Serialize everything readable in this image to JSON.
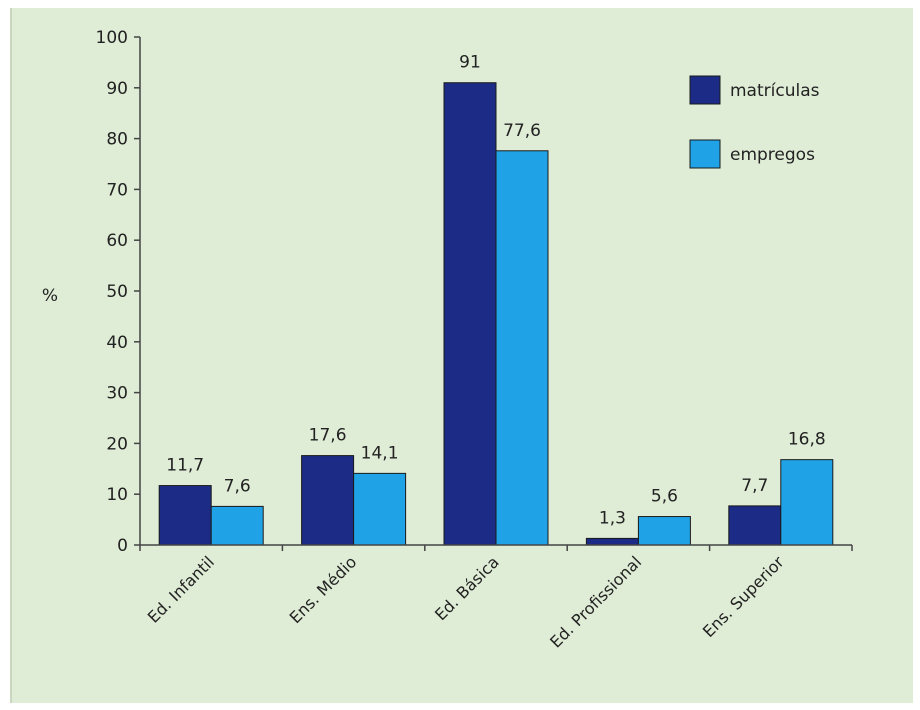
{
  "chart_data": {
    "type": "bar",
    "title": "",
    "xlabel": "",
    "ylabel": "%",
    "ylim": [
      0,
      100
    ],
    "yticks": [
      0,
      10,
      20,
      30,
      40,
      50,
      60,
      70,
      80,
      90,
      100
    ],
    "grid": false,
    "legend_position": "top-right",
    "categories": [
      "Ed. Infantil",
      "Ens. Médio",
      "Ed. Básica",
      "Ed. Profissional",
      "Ens. Superior"
    ],
    "series": [
      {
        "name": "matrículas",
        "color": "#1c2c86",
        "values": [
          11.7,
          17.6,
          91,
          1.3,
          7.7
        ],
        "labels": [
          "11,7",
          "17,6",
          "91",
          "1,3",
          "7,7"
        ]
      },
      {
        "name": "empregos",
        "color": "#20a3e6",
        "values": [
          7.6,
          14.1,
          77.6,
          5.6,
          16.8
        ],
        "labels": [
          "7,6",
          "14,1",
          "77,6",
          "5,6",
          "16,8"
        ]
      }
    ]
  }
}
